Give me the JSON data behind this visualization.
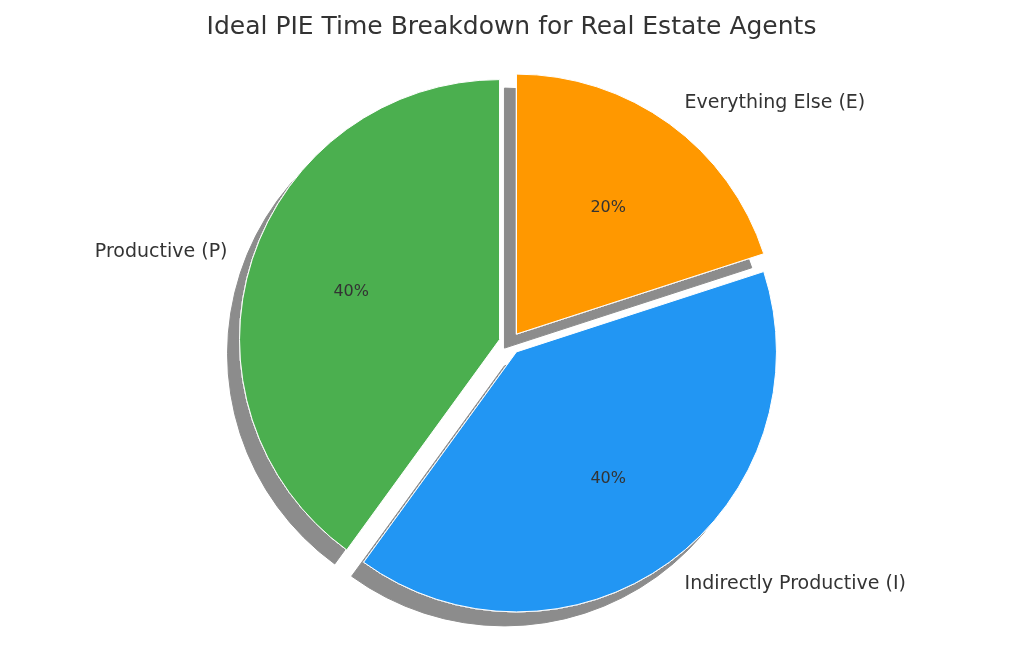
{
  "chart_data": {
    "type": "pie",
    "title": "Ideal PIE Time Breakdown for Real Estate Agents",
    "categories": [
      "Productive (P)",
      "Indirectly Productive (I)",
      "Everything Else (E)"
    ],
    "values": [
      40,
      40,
      20
    ],
    "colors": [
      "#4caf50",
      "#2196f3",
      "#ff9800"
    ],
    "value_labels": [
      "40%",
      "40%",
      "20%"
    ]
  }
}
